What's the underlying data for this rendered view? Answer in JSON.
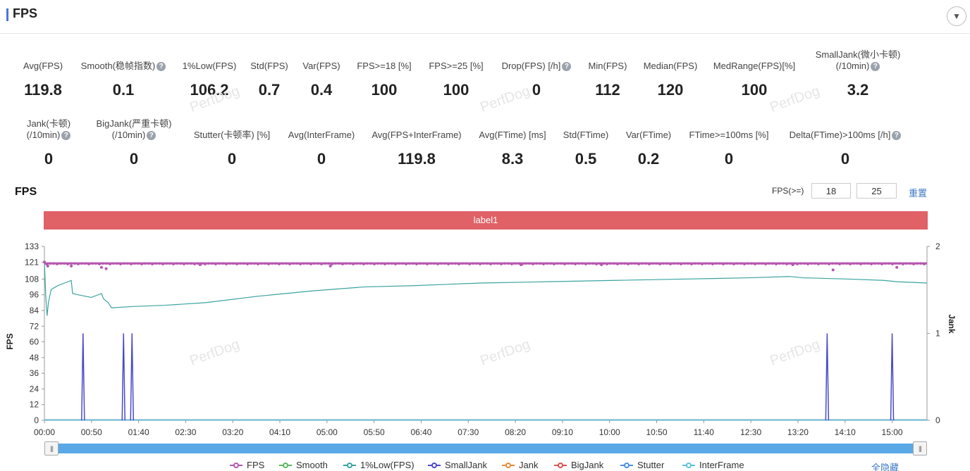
{
  "header": {
    "title": "FPS"
  },
  "metrics_row1": [
    {
      "label": "Avg(FPS)",
      "value": "119.8",
      "help": false
    },
    {
      "label": "Smooth(稳帧指数)",
      "value": "0.1",
      "help": true
    },
    {
      "label": "1%Low(FPS)",
      "value": "106.2",
      "help": false
    },
    {
      "label": "Std(FPS)",
      "value": "0.7",
      "help": false
    },
    {
      "label": "Var(FPS)",
      "value": "0.4",
      "help": false
    },
    {
      "label": "FPS>=18 [%]",
      "value": "100",
      "help": false
    },
    {
      "label": "FPS>=25 [%]",
      "value": "100",
      "help": false
    },
    {
      "label": "Drop(FPS) [/h]",
      "value": "0",
      "help": true
    },
    {
      "label": "Min(FPS)",
      "value": "112",
      "help": false
    },
    {
      "label": "Median(FPS)",
      "value": "120",
      "help": false
    },
    {
      "label": "MedRange(FPS)[%]",
      "value": "100",
      "help": false
    },
    {
      "label": "SmallJank(微小卡顿)",
      "label2": "(/10min)",
      "value": "3.2",
      "help": true
    }
  ],
  "metrics_row2": [
    {
      "label": "Jank(卡顿)",
      "label2": "(/10min)",
      "value": "0",
      "help": true
    },
    {
      "label": "BigJank(严重卡顿)",
      "label2": "(/10min)",
      "value": "0",
      "help": true
    },
    {
      "label": "Stutter(卡顿率) [%]",
      "value": "0",
      "help": false
    },
    {
      "label": "Avg(InterFrame)",
      "value": "0",
      "help": false
    },
    {
      "label": "Avg(FPS+InterFrame)",
      "value": "119.8",
      "help": false
    },
    {
      "label": "Avg(FTime) [ms]",
      "value": "8.3",
      "help": false
    },
    {
      "label": "Std(FTime)",
      "value": "0.5",
      "help": false
    },
    {
      "label": "Var(FTime)",
      "value": "0.2",
      "help": false
    },
    {
      "label": "FTime>=100ms [%]",
      "value": "0",
      "help": false
    },
    {
      "label": "Delta(FTime)>100ms [/h]",
      "value": "0",
      "help": true
    }
  ],
  "watermark": "PerfDog",
  "chart": {
    "title": "FPS",
    "filter_label": "FPS(>=)",
    "filter_values": [
      "18",
      "25"
    ],
    "reset_label": "重置",
    "label_band": "label1",
    "hide_all": "全隐藏",
    "slider_handle": "|||"
  },
  "chart_data": {
    "type": "line",
    "ylabel": "FPS",
    "y2label": "Jank",
    "y_ticks": [
      0,
      12,
      24,
      36,
      48,
      60,
      72,
      84,
      96,
      108,
      121,
      133
    ],
    "y2_ticks": [
      0,
      1,
      2
    ],
    "ylim": [
      0,
      133
    ],
    "y2lim": [
      0,
      2
    ],
    "x_ticks": [
      "00:00",
      "00:50",
      "01:40",
      "02:30",
      "03:20",
      "04:10",
      "05:00",
      "05:50",
      "06:40",
      "07:30",
      "08:20",
      "09:10",
      "10:00",
      "10:50",
      "11:40",
      "12:30",
      "13:20",
      "14:10",
      "15:00"
    ],
    "x_range_seconds": [
      0,
      937
    ],
    "series": [
      {
        "name": "FPS",
        "color": "#b556b0",
        "base": 120,
        "dips": [
          [
            0,
            121
          ],
          [
            5,
            118
          ],
          [
            40,
            118
          ],
          [
            85,
            117
          ],
          [
            92,
            116
          ],
          [
            232,
            119
          ],
          [
            426,
            118
          ],
          [
            710,
            119
          ],
          [
            830,
            119
          ],
          [
            1115,
            119
          ],
          [
            1175,
            115
          ],
          [
            1270,
            117
          ]
        ],
        "dip_positions": [
          0,
          5,
          40,
          85,
          92,
          232,
          426,
          710,
          830,
          1115,
          1175,
          1270
        ]
      },
      {
        "name": "Smooth",
        "color": "#5cb85c",
        "constant": 0
      },
      {
        "name": "1%Low(FPS)",
        "color": "#3aa3a0",
        "points": [
          [
            0,
            121
          ],
          [
            2,
            95
          ],
          [
            4,
            80
          ],
          [
            6,
            90
          ],
          [
            8,
            95
          ],
          [
            10,
            100
          ],
          [
            20,
            103
          ],
          [
            30,
            105
          ],
          [
            40,
            107
          ],
          [
            42,
            97
          ],
          [
            50,
            96
          ],
          [
            60,
            95
          ],
          [
            70,
            94
          ],
          [
            85,
            97
          ],
          [
            88,
            93
          ],
          [
            95,
            90
          ],
          [
            100,
            86
          ],
          [
            130,
            87
          ],
          [
            180,
            88
          ],
          [
            240,
            90
          ],
          [
            320,
            95
          ],
          [
            400,
            99
          ],
          [
            476,
            102
          ],
          [
            550,
            103
          ],
          [
            650,
            105
          ],
          [
            750,
            106
          ],
          [
            850,
            107
          ],
          [
            950,
            108
          ],
          [
            1050,
            109
          ],
          [
            1110,
            110
          ],
          [
            1130,
            109
          ],
          [
            1200,
            108
          ],
          [
            1250,
            107
          ],
          [
            1270,
            106
          ],
          [
            1315,
            105
          ]
        ],
        "x_units": "seconds_scaled"
      },
      {
        "name": "SmallJank",
        "color": "#4a4acb",
        "spikes_seconds": [
          41,
          84,
          93,
          831,
          900
        ],
        "y2": 1
      },
      {
        "name": "Jank",
        "color": "#e88b3a",
        "constant": 0
      },
      {
        "name": "BigJank",
        "color": "#d9534f",
        "constant": 0
      },
      {
        "name": "Stutter",
        "color": "#4a8fe0",
        "constant": 0
      },
      {
        "name": "InterFrame",
        "color": "#5bc0de",
        "constant": 0
      }
    ]
  }
}
